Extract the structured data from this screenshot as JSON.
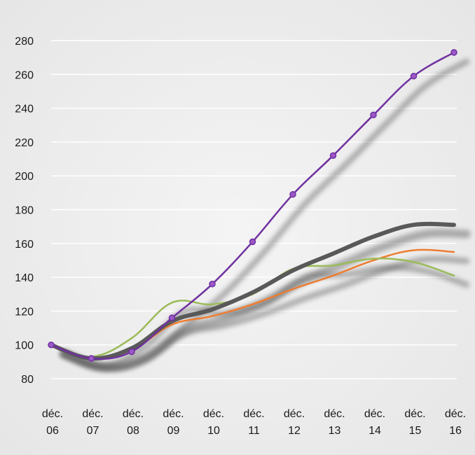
{
  "chart_data": {
    "type": "line",
    "x_tick_labels": [
      [
        "déc.",
        "06"
      ],
      [
        "déc.",
        "07"
      ],
      [
        "déc.",
        "08"
      ],
      [
        "déc.",
        "09"
      ],
      [
        "déc.",
        "10"
      ],
      [
        "déc.",
        "11"
      ],
      [
        "déc.",
        "12"
      ],
      [
        "déc.",
        "13"
      ],
      [
        "déc.",
        "14"
      ],
      [
        "déc.",
        "15"
      ],
      [
        "déc.",
        "16"
      ]
    ],
    "y_ticks": [
      80,
      100,
      120,
      140,
      160,
      180,
      200,
      220,
      240,
      260,
      280
    ],
    "ylim": [
      72,
      288
    ],
    "grid": true,
    "series": [
      {
        "color": "#7030a0",
        "markers": true,
        "values": [
          100,
          92,
          96,
          116,
          136,
          161,
          189,
          212,
          236,
          259,
          273
        ]
      },
      {
        "color": "#595959",
        "markers": false,
        "values": [
          100,
          92,
          98,
          114,
          121,
          131,
          144,
          154,
          164,
          171,
          171
        ]
      },
      {
        "color": "#9bbb59",
        "markers": false,
        "values": [
          100,
          93,
          104,
          125,
          124,
          130,
          145,
          147,
          151,
          149,
          141
        ]
      },
      {
        "color": "#ed7d31",
        "markers": false,
        "values": [
          100,
          92,
          97,
          112,
          117,
          124,
          133,
          141,
          150,
          156,
          155
        ]
      }
    ]
  }
}
